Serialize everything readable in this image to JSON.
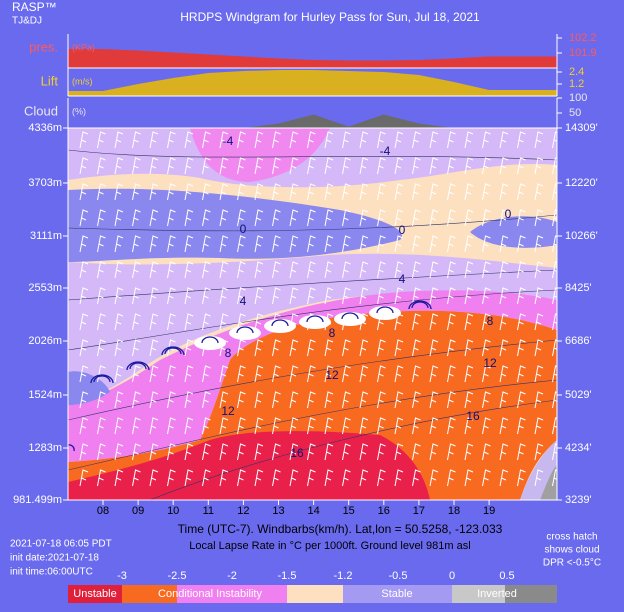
{
  "header": {
    "brand": "RASP™",
    "authors": "TJ&DJ",
    "title": "HRDPS Windgram for Hurley Pass for Sun, Jul 18, 2021"
  },
  "chart_data": {
    "type": "windgram",
    "categories": [
      "08",
      "09",
      "10",
      "11",
      "12",
      "13",
      "14",
      "15",
      "16",
      "17",
      "18",
      "19"
    ],
    "panels": [
      {
        "name": "pres.",
        "unit": "(KPa)",
        "color": "#e03a3a",
        "label_color": "#ff5a5a",
        "ylim": [
          101.6,
          102.28
        ],
        "yticks": [
          101.9,
          102.2
        ],
        "values": [
          101.98,
          101.95,
          101.91,
          101.87,
          101.83,
          101.79,
          101.76,
          101.75,
          101.75,
          101.76,
          101.79,
          101.83
        ]
      },
      {
        "name": "Lift",
        "unit": "(m/s)",
        "color": "#d8b020",
        "label_color": "#f0d030",
        "ylim": [
          0,
          2.8
        ],
        "yticks": [
          1.2,
          2.4
        ],
        "values": [
          0.5,
          1.2,
          1.8,
          2.3,
          2.5,
          2.6,
          2.6,
          2.5,
          2.4,
          2.1,
          1.4,
          0.6
        ]
      },
      {
        "name": "Cloud",
        "unit": "(%)",
        "color": "#6a6a6a",
        "label_color": "#e8e8e8",
        "ylim": [
          0,
          100
        ],
        "yticks": [
          50,
          100
        ],
        "values": [
          0,
          0,
          0,
          0,
          0,
          15,
          45,
          5,
          45,
          15,
          0,
          0
        ]
      }
    ],
    "heights_m": [
      "4336m",
      "3703m",
      "3111m",
      "2553m",
      "2026m",
      "1524m",
      "1283m",
      "981.499m"
    ],
    "heights_ft": [
      "14309'",
      "12220'",
      "10266'",
      "8425'",
      "6686'",
      "5029'",
      "4234'",
      "3239'"
    ],
    "contour_labels": [
      -4,
      -4,
      0,
      0,
      0,
      4,
      4,
      8,
      8,
      8,
      12,
      12,
      12,
      16,
      16
    ],
    "xlabel": "Time (UTC-7). Windbarbs(km/h). Lat,lon = 50.5258, -123.033",
    "subtitle": "Local Lapse Rate in °C per 1000ft.   Ground level 981m asl"
  },
  "footer": {
    "issued": "2021-07-18 06:05 PDT",
    "init_date": "init date:2021-07-18",
    "init_time": "init time:06:00UTC",
    "note": [
      "cross hatch",
      "shows cloud",
      "DPR <-0.5°C"
    ]
  },
  "legend": {
    "ticks": [
      -3,
      -2.5,
      -2,
      -1.5,
      -1.2,
      -0.5,
      0,
      0.5
    ],
    "labels": [
      "Unstable",
      "Conditional Instability",
      "Stable",
      "Inverted"
    ]
  }
}
